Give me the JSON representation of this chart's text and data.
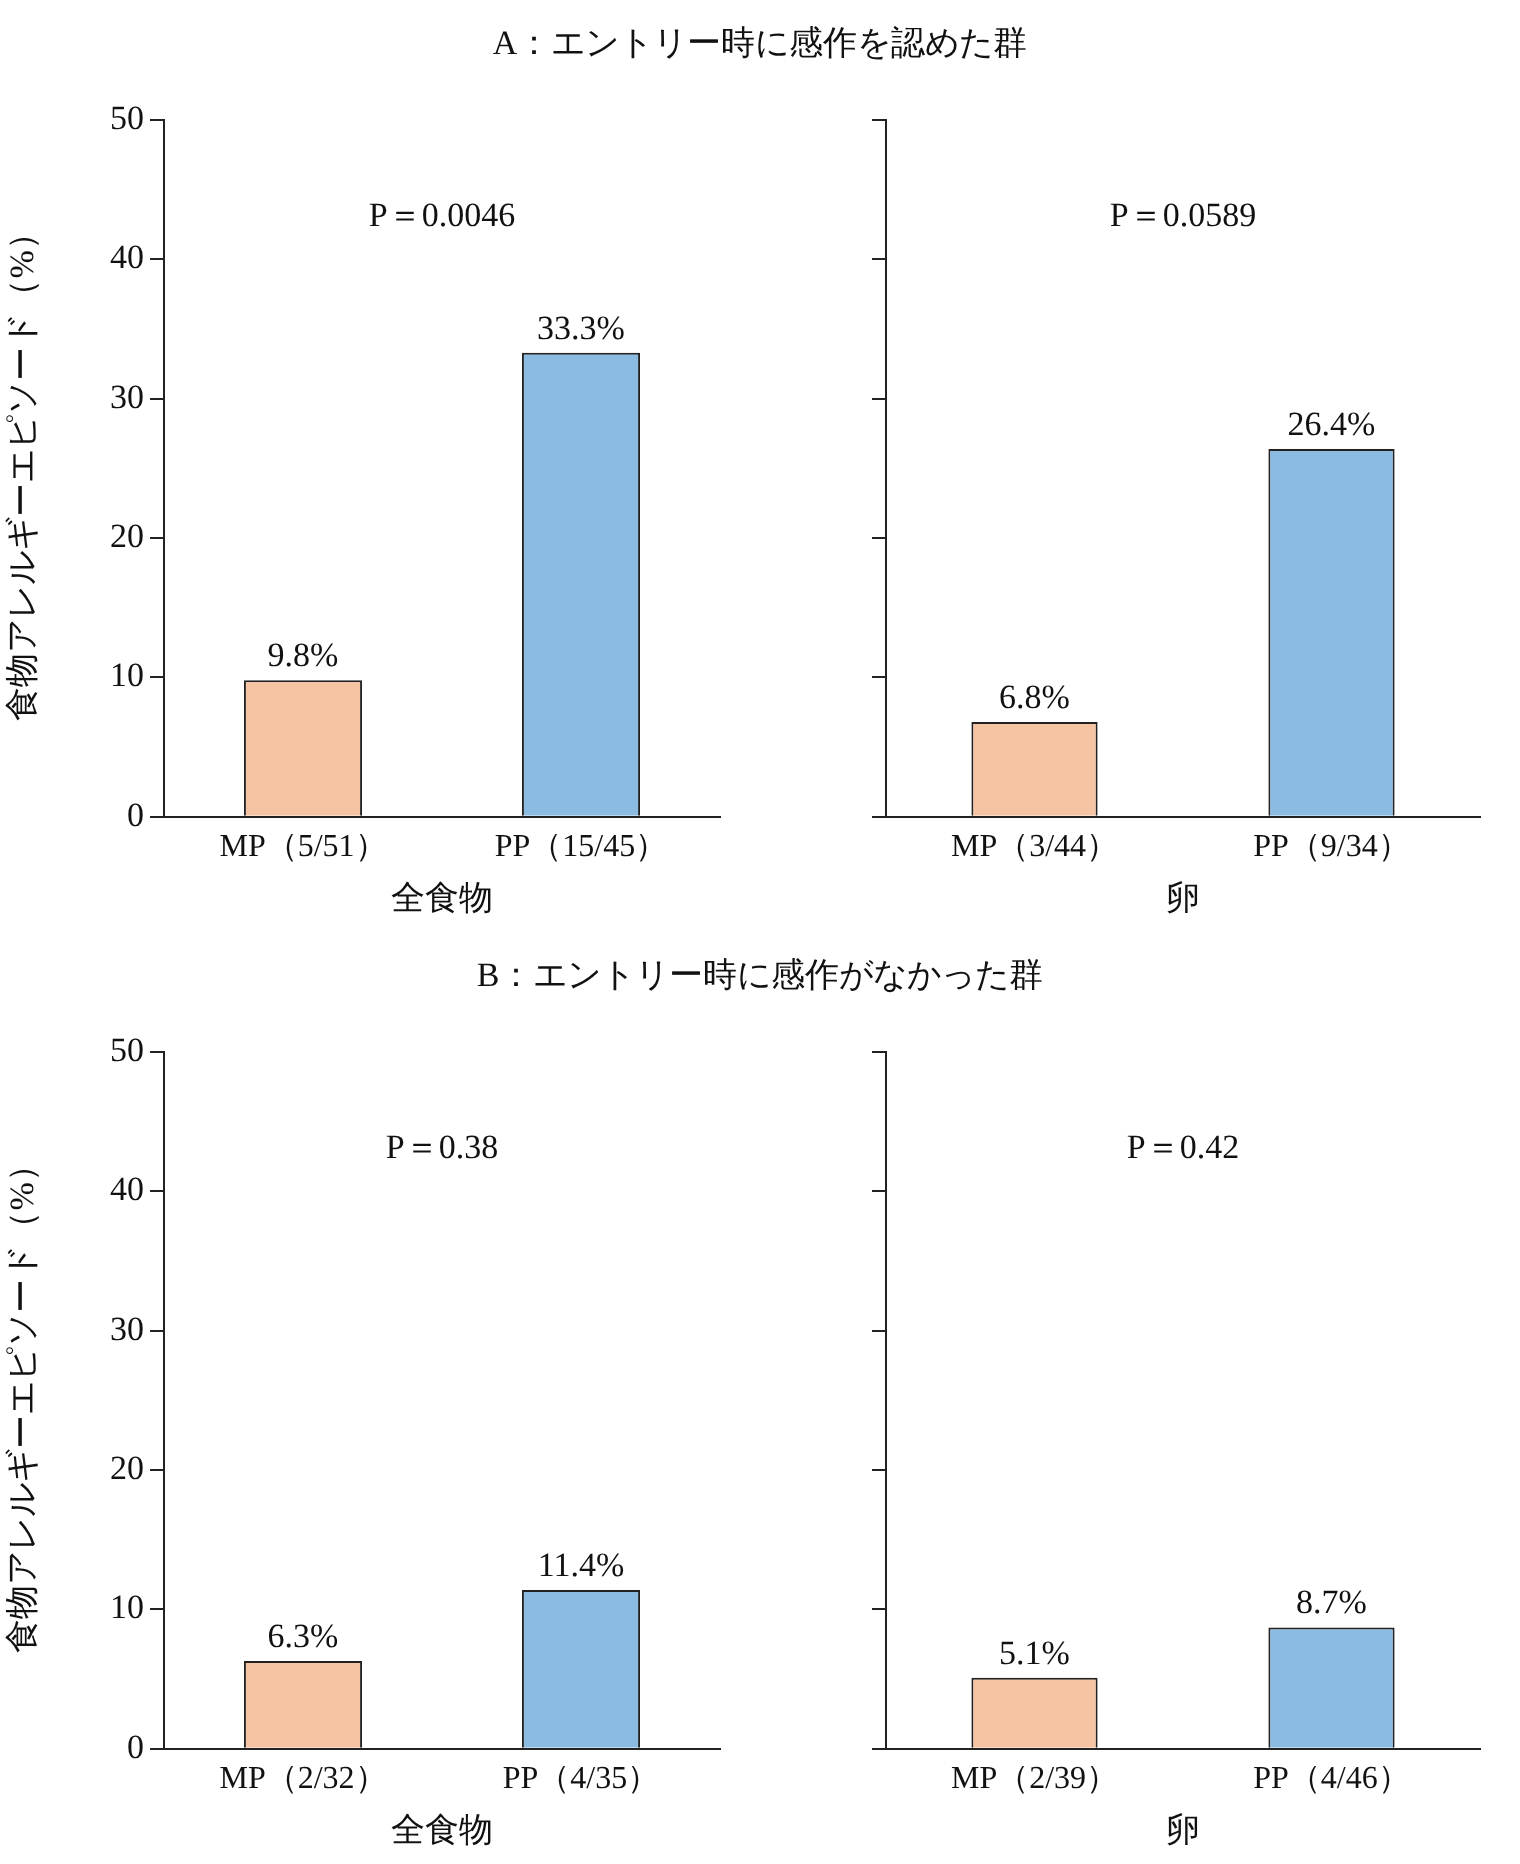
{
  "chart_data": [
    {
      "type": "bar",
      "title": "A：エントリー時に感作を認めた群",
      "categories": [
        "MP（5/51）",
        "PP（15/45）"
      ],
      "values": [
        9.8,
        33.3
      ],
      "colors": [
        "#f7c4a3",
        "#8cbbe2"
      ],
      "value_labels": [
        "9.8%",
        "33.3%"
      ],
      "xlabel": "全食物",
      "ylabel": "食物アレルギーエピソード（%）",
      "ylim": [
        0,
        50
      ],
      "yticks": [
        0,
        10,
        20,
        30,
        40,
        50
      ],
      "grid": false,
      "legend": false,
      "annotations": [
        "P＝0.0046"
      ]
    },
    {
      "type": "bar",
      "categories": [
        "MP（3/44）",
        "PP（9/34）"
      ],
      "values": [
        6.8,
        26.4
      ],
      "colors": [
        "#f7c4a3",
        "#8cbbe2"
      ],
      "value_labels": [
        "6.8%",
        "26.4%"
      ],
      "xlabel": "卵",
      "ylim": [
        0,
        50
      ],
      "yticks": [
        0,
        10,
        20,
        30,
        40,
        50
      ],
      "tick_labels": "x",
      "grid": false,
      "legend": false,
      "annotations": [
        "P＝0.0589"
      ]
    },
    {
      "type": "bar",
      "title": "B：エントリー時に感作がなかった群",
      "categories": [
        "MP（2/32）",
        "PP（4/35）"
      ],
      "values": [
        6.3,
        11.4
      ],
      "colors": [
        "#f7c4a3",
        "#8cbbe2"
      ],
      "value_labels": [
        "6.3%",
        "11.4%"
      ],
      "xlabel": "全食物",
      "ylabel": "食物アレルギーエピソード（%）",
      "ylim": [
        0,
        50
      ],
      "yticks": [
        0,
        10,
        20,
        30,
        40,
        50
      ],
      "grid": false,
      "legend": false,
      "annotations": [
        "P＝0.38"
      ]
    },
    {
      "type": "bar",
      "categories": [
        "MP（2/39）",
        "PP（4/46）"
      ],
      "values": [
        5.1,
        8.7
      ],
      "colors": [
        "#f7c4a3",
        "#8cbbe2"
      ],
      "value_labels": [
        "5.1%",
        "8.7%"
      ],
      "xlabel": "卵",
      "ylim": [
        0,
        50
      ],
      "yticks": [
        0,
        10,
        20,
        30,
        40,
        50
      ],
      "tick_labels": "x",
      "grid": false,
      "legend": false,
      "annotations": [
        "P＝0.42"
      ]
    }
  ]
}
